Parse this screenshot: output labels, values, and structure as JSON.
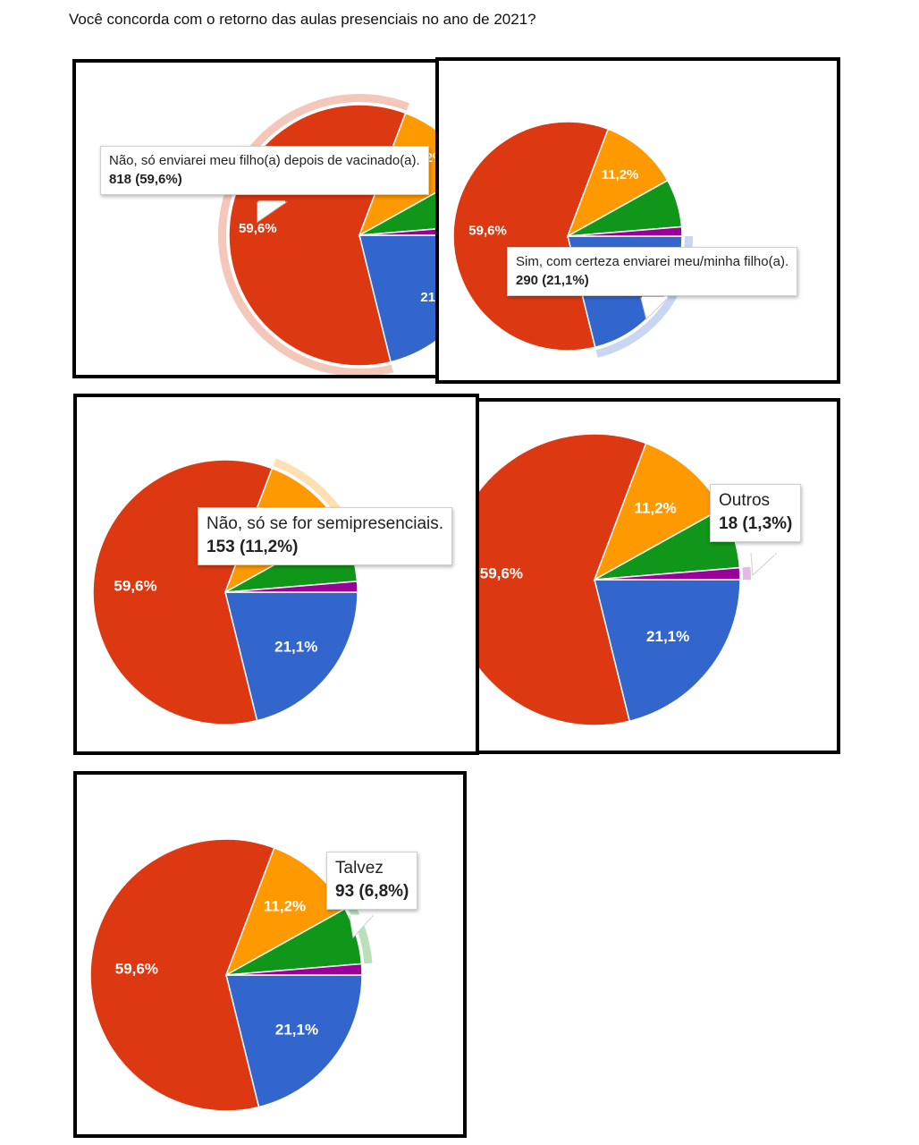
{
  "question": "Você concorda com o retorno das aulas presenciais no ano de 2021?",
  "colors": {
    "red": "#dc3912",
    "blue": "#3366cc",
    "orange": "#ff9900",
    "green": "#109618",
    "purple": "#990099",
    "highlight_red": "#f4c7bb",
    "highlight_blue": "#c8d6f2",
    "highlight_orange": "#ffe0b2",
    "highlight_green": "#b7e0bb",
    "highlight_purple": "#e6b8e6"
  },
  "chart_data": {
    "type": "pie",
    "title": "",
    "slices": [
      {
        "label": "Não, só enviarei meu filho(a) depois de vacinado(a).",
        "count": 818,
        "percent": 59.6,
        "display_pct": "59,6%",
        "value_text": "818 (59,6%)",
        "color": "#dc3912"
      },
      {
        "label": "Sim, com certeza enviarei meu/minha filho(a).",
        "count": 290,
        "percent": 21.1,
        "display_pct": "21,1%",
        "value_text": "290 (21,1%)",
        "color": "#3366cc"
      },
      {
        "label": "Não, só se for semipresenciais.",
        "count": 153,
        "percent": 11.2,
        "display_pct": "11,2%",
        "value_text": "153 (11,2%)",
        "color": "#ff9900"
      },
      {
        "label": "Talvez",
        "count": 93,
        "percent": 6.8,
        "display_pct": "",
        "value_text": "93 (6,8%)",
        "color": "#109618"
      },
      {
        "label": "Outros",
        "count": 18,
        "percent": 1.3,
        "display_pct": "",
        "value_text": "18 (1,3%)",
        "color": "#990099"
      }
    ]
  },
  "views": [
    {
      "highlighted": "Não, só enviarei meu filho(a) depois de vacinado(a).",
      "tooltip_label": "Não, só enviarei meu filho(a) depois de vacinado(a).",
      "tooltip_value": "818 (59,6%)"
    },
    {
      "highlighted": "Sim, com certeza enviarei meu/minha filho(a).",
      "tooltip_label": "Sim, com certeza enviarei meu/minha filho(a).",
      "tooltip_value": "290 (21,1%)"
    },
    {
      "highlighted": "Não, só se for semipresenciais.",
      "tooltip_label": "Não, só se for semipresenciais.",
      "tooltip_value": "153 (11,2%)"
    },
    {
      "highlighted": "Outros",
      "tooltip_label": "Outros",
      "tooltip_value": "18 (1,3%)"
    },
    {
      "highlighted": "Talvez",
      "tooltip_label": "Talvez",
      "tooltip_value": "93 (6,8%)"
    }
  ]
}
